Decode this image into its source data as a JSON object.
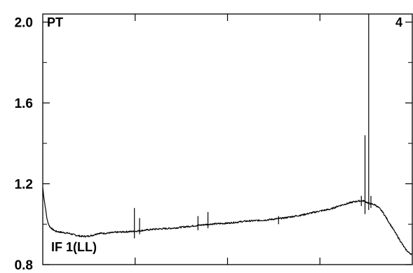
{
  "chart_data": {
    "type": "line",
    "title": "",
    "xlabel": "",
    "ylabel": "",
    "ylim": [
      0.8,
      2.04
    ],
    "yticks": [
      0.8,
      1.2,
      1.6,
      2.0
    ],
    "ytick_labels": [
      "0.8",
      "1.2",
      "1.6",
      "2.0"
    ],
    "xlim": [
      0,
      1
    ],
    "xticks": [
      0.25,
      0.5,
      0.75
    ],
    "grid": false,
    "label_top_left": "PT",
    "label_top_right": "4",
    "label_bottom_left": "IF 1(LL)",
    "series": [
      {
        "color": "#000000",
        "noise": 0.004,
        "x": [
          0.0,
          0.004,
          0.008,
          0.012,
          0.018,
          0.026,
          0.035,
          0.05,
          0.07,
          0.09,
          0.105,
          0.12,
          0.135,
          0.15,
          0.17,
          0.2,
          0.25,
          0.3,
          0.35,
          0.4,
          0.45,
          0.5,
          0.55,
          0.6,
          0.65,
          0.7,
          0.75,
          0.78,
          0.8,
          0.82,
          0.84,
          0.855,
          0.87,
          0.88,
          0.89,
          0.9,
          0.91,
          0.92,
          0.93,
          0.94,
          0.95,
          0.96,
          0.97,
          0.98,
          0.99,
          1.0
        ],
        "y": [
          1.18,
          1.12,
          1.07,
          1.02,
          0.99,
          0.975,
          0.965,
          0.96,
          0.955,
          0.945,
          0.94,
          0.94,
          0.945,
          0.955,
          0.955,
          0.96,
          0.965,
          0.975,
          0.98,
          0.99,
          1.0,
          1.005,
          1.015,
          1.02,
          1.03,
          1.045,
          1.065,
          1.075,
          1.09,
          1.1,
          1.11,
          1.115,
          1.115,
          1.105,
          1.1,
          1.095,
          1.08,
          1.06,
          1.03,
          1.0,
          0.97,
          0.94,
          0.91,
          0.88,
          0.86,
          0.85
        ]
      }
    ],
    "spikes": [
      {
        "x": 0.248,
        "top": 1.08,
        "bottom": 0.93
      },
      {
        "x": 0.262,
        "top": 1.03,
        "bottom": 0.95
      },
      {
        "x": 0.42,
        "top": 1.04,
        "bottom": 0.97
      },
      {
        "x": 0.447,
        "top": 1.06,
        "bottom": 0.98
      },
      {
        "x": 0.638,
        "top": 1.04,
        "bottom": 1.0
      },
      {
        "x": 0.862,
        "top": 1.14,
        "bottom": 1.09
      },
      {
        "x": 0.872,
        "top": 1.44,
        "bottom": 1.05
      },
      {
        "x": 0.882,
        "top": 2.04,
        "bottom": 1.07
      },
      {
        "x": 0.888,
        "top": 1.14,
        "bottom": 1.08
      }
    ]
  }
}
